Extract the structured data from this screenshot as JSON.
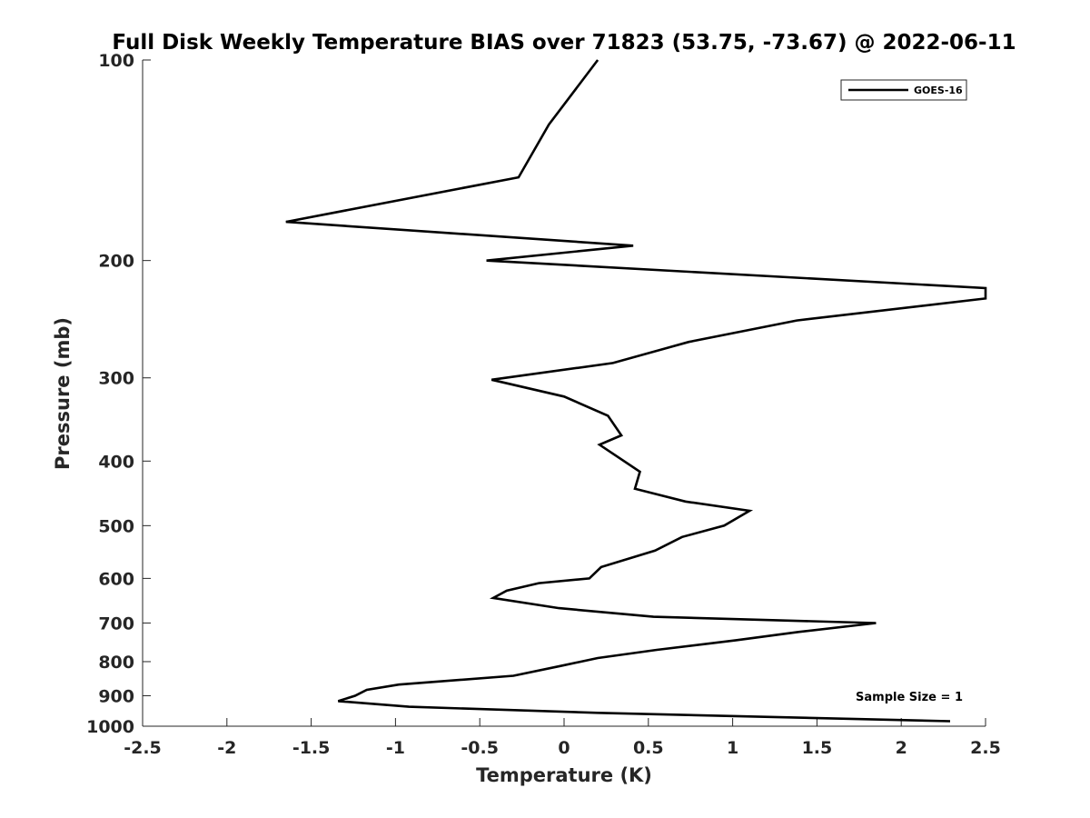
{
  "chart_data": {
    "type": "line",
    "title": "Full Disk Weekly Temperature BIAS over 71823 (53.75, -73.67) @ 2022-06-11",
    "xlabel": "Temperature (K)",
    "ylabel": "Pressure (mb)",
    "xlim": [
      -2.5,
      2.5
    ],
    "ylim": [
      100,
      1000
    ],
    "y_scale": "log",
    "y_reversed": true,
    "xticks": [
      -2.5,
      -2,
      -1.5,
      -1,
      -0.5,
      0,
      0.5,
      1,
      1.5,
      2,
      2.5
    ],
    "xtick_labels": [
      "-2.5",
      "-2",
      "-1.5",
      "-1",
      "-0.5",
      "0",
      "0.5",
      "1",
      "1.5",
      "2",
      "2.5"
    ],
    "yticks": [
      100,
      200,
      300,
      400,
      500,
      600,
      700,
      800,
      900,
      1000
    ],
    "ytick_labels": [
      "100",
      "200",
      "300",
      "400",
      "500",
      "600",
      "700",
      "800",
      "900",
      "1000"
    ],
    "grid": false,
    "legend_position": "top-right",
    "annotation": "Sample Size = 1",
    "series": [
      {
        "name": "GOES-16",
        "color": "#000000",
        "points": [
          {
            "x": 0.2,
            "p": 100
          },
          {
            "x": -0.09,
            "p": 125
          },
          {
            "x": -0.27,
            "p": 150
          },
          {
            "x": -1.65,
            "p": 175
          },
          {
            "x": 0.41,
            "p": 190
          },
          {
            "x": -0.46,
            "p": 200
          },
          {
            "x": 2.5,
            "p": 220
          },
          {
            "x": 2.5,
            "p": 228
          },
          {
            "x": 1.38,
            "p": 246
          },
          {
            "x": 0.74,
            "p": 265
          },
          {
            "x": 0.29,
            "p": 285
          },
          {
            "x": -0.43,
            "p": 302
          },
          {
            "x": 0.0,
            "p": 320
          },
          {
            "x": 0.26,
            "p": 342
          },
          {
            "x": 0.34,
            "p": 366
          },
          {
            "x": 0.21,
            "p": 378
          },
          {
            "x": 0.45,
            "p": 415
          },
          {
            "x": 0.42,
            "p": 440
          },
          {
            "x": 0.72,
            "p": 460
          },
          {
            "x": 1.1,
            "p": 475
          },
          {
            "x": 0.95,
            "p": 500
          },
          {
            "x": 0.7,
            "p": 520
          },
          {
            "x": 0.54,
            "p": 545
          },
          {
            "x": 0.22,
            "p": 577
          },
          {
            "x": 0.15,
            "p": 600
          },
          {
            "x": -0.15,
            "p": 610
          },
          {
            "x": -0.34,
            "p": 626
          },
          {
            "x": -0.42,
            "p": 642
          },
          {
            "x": -0.03,
            "p": 665
          },
          {
            "x": 0.53,
            "p": 685
          },
          {
            "x": 1.85,
            "p": 700
          },
          {
            "x": 1.39,
            "p": 722
          },
          {
            "x": 1.02,
            "p": 743
          },
          {
            "x": 0.55,
            "p": 768
          },
          {
            "x": 0.2,
            "p": 790
          },
          {
            "x": -0.02,
            "p": 812
          },
          {
            "x": -0.3,
            "p": 840
          },
          {
            "x": -0.98,
            "p": 866
          },
          {
            "x": -1.17,
            "p": 882
          },
          {
            "x": -1.24,
            "p": 900
          },
          {
            "x": -1.34,
            "p": 917
          },
          {
            "x": -0.92,
            "p": 935
          },
          {
            "x": 0.2,
            "p": 955
          },
          {
            "x": 2.29,
            "p": 983
          }
        ]
      }
    ]
  }
}
